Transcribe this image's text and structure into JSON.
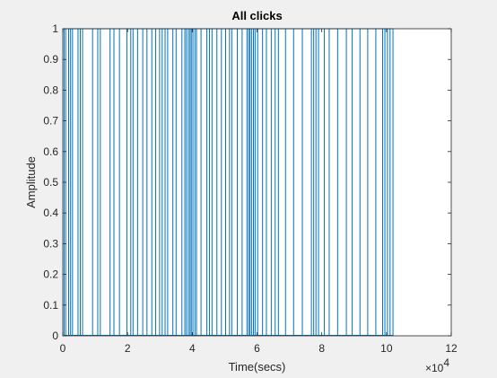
{
  "chart_data": {
    "type": "line",
    "title": "All clicks",
    "xlabel": "Time(secs)",
    "ylabel": "Amplitude",
    "x_multiplier_base": "×10",
    "x_multiplier_exp": "4",
    "xlim": [
      0,
      120000
    ],
    "ylim": [
      0,
      1
    ],
    "x_ticks": [
      0,
      20000,
      40000,
      60000,
      80000,
      100000,
      120000
    ],
    "x_tick_labels": [
      "0",
      "2",
      "4",
      "6",
      "8",
      "10",
      "12"
    ],
    "y_ticks": [
      0,
      0.1,
      0.2,
      0.3,
      0.4,
      0.5,
      0.6,
      0.7,
      0.8,
      0.9,
      1
    ],
    "y_tick_labels": [
      "0",
      "0.1",
      "0.2",
      "0.3",
      "0.4",
      "0.5",
      "0.6",
      "0.7",
      "0.8",
      "0.9",
      "1"
    ],
    "grid": false,
    "line_color": "#0072BD",
    "series": [
      {
        "click_times": [
          400,
          900,
          1800,
          2400,
          3000,
          4700,
          5400,
          6100,
          9200,
          10800,
          11600,
          14600,
          15800,
          17500,
          19800,
          21000,
          21700,
          23100,
          24700,
          26000,
          27500,
          28700,
          29900,
          30700,
          31600,
          32400,
          34000,
          35000,
          36800,
          37700,
          38200,
          38800,
          39300,
          39700,
          40200,
          40800,
          41300,
          42700,
          44500,
          45300,
          46100,
          47600,
          49000,
          50300,
          51500,
          52200,
          53900,
          55400,
          56900,
          57400,
          57800,
          58300,
          58900,
          59400,
          60200,
          61700,
          62900,
          64400,
          65600,
          66600,
          68800,
          71300,
          74000,
          76800,
          77500,
          78200,
          79000,
          80800,
          82300,
          84900,
          87600,
          89400,
          91800,
          94200,
          96700,
          98800,
          99500,
          100300,
          101100,
          102000
        ]
      }
    ]
  }
}
